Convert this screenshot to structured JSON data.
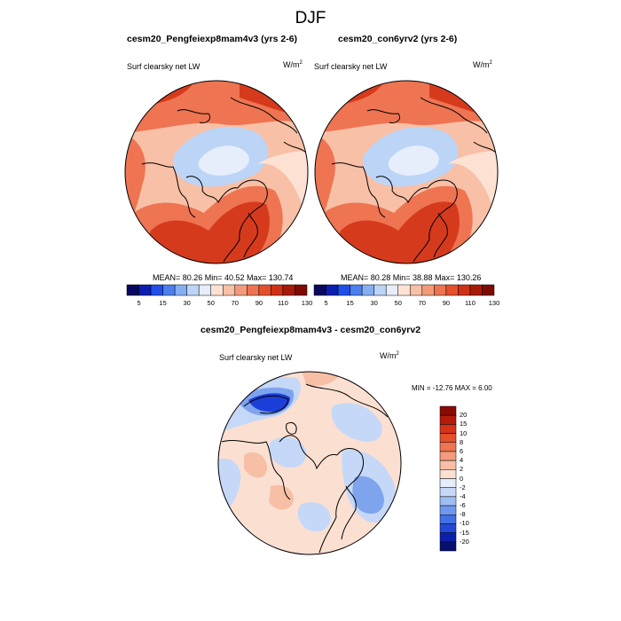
{
  "figure": {
    "season": "DJF"
  },
  "panels": [
    {
      "title": "cesm20_Pengfeiexp8mam4v3 (yrs 2-6)",
      "variable": "Surf clearsky net LW",
      "units_base": "W/m",
      "units_exp": "2",
      "stats": "MEAN=  80.26  Min=  40.52  Max= 130.74"
    },
    {
      "title": "cesm20_con6yrv2 (yrs 2-6)",
      "variable": "Surf clearsky net LW",
      "units_base": "W/m",
      "units_exp": "2",
      "stats": "MEAN=  80.28  Min=  38.88  Max= 130.26"
    }
  ],
  "diff_panel": {
    "title": "cesm20_Pengfeiexp8mam4v3 - cesm20_con6yrv2",
    "variable": "Surf clearsky net LW",
    "units_base": "W/m",
    "units_exp": "2",
    "stats": "MIN = -12.76 MAX =   6.00"
  },
  "colorbar_abs": {
    "labels": [
      "5",
      "15",
      "30",
      "50",
      "70",
      "90",
      "110",
      "130"
    ],
    "colors": [
      "#08085e",
      "#0a1fb0",
      "#1f4fe8",
      "#4a7fec",
      "#86aef2",
      "#bcd4f6",
      "#e6eefb",
      "#fde2d4",
      "#f8c0a6",
      "#f29a7a",
      "#ec7451",
      "#e4502b",
      "#cf3116",
      "#a81a08",
      "#7d0b02"
    ]
  },
  "colorbar_diff": {
    "labels": [
      "20",
      "15",
      "10",
      "8",
      "6",
      "4",
      "2",
      "0",
      "-2",
      "-4",
      "-6",
      "-8",
      "-10",
      "-15",
      "-20"
    ],
    "colors": [
      "#8a0a04",
      "#b31a0a",
      "#d5321a",
      "#e4502b",
      "#ee7452",
      "#f39b7c",
      "#f7c0a6",
      "#fbe0d2",
      "#e6eefb",
      "#c6d8f7",
      "#9dbdf3",
      "#6f99ee",
      "#4470e6",
      "#2448d6",
      "#0c1fa8",
      "#05106e"
    ]
  },
  "map_colors": {
    "warm_dark": "#d63a1c",
    "warm_mid": "#ee7452",
    "warm_light": "#f8c0a6",
    "neutral": "#fde2d4",
    "cool_light": "#e6eefb",
    "cool_mid": "#bcd4f6",
    "diff_blue_dark": "#1c3ed8",
    "diff_blue_mid": "#7fa4ee",
    "diff_blue_light": "#c6d8f7",
    "diff_pink": "#fbe0d2",
    "diff_salmon": "#f7c0a6"
  }
}
